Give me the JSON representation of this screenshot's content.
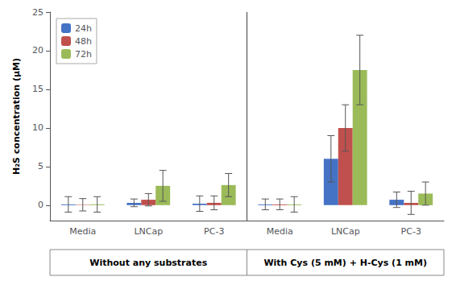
{
  "chart_data": {
    "type": "bar",
    "categories": [
      "Media",
      "LNCap",
      "PC-3",
      "Media",
      "LNCap",
      "PC-3"
    ],
    "series": [
      {
        "name": "24h",
        "color": "#4472C4",
        "values": [
          0.1,
          0.3,
          0.2,
          0.1,
          6.0,
          0.7
        ],
        "errors": [
          1.0,
          0.5,
          1.0,
          0.7,
          3.0,
          1.0
        ]
      },
      {
        "name": "48h",
        "color": "#C0504D",
        "values": [
          0.05,
          0.7,
          0.3,
          0.1,
          10.0,
          0.3
        ],
        "errors": [
          0.8,
          0.8,
          0.9,
          0.7,
          3.0,
          1.5
        ]
      },
      {
        "name": "72h",
        "color": "#9BBB59",
        "values": [
          0.1,
          2.5,
          2.6,
          0.1,
          17.5,
          1.5
        ],
        "errors": [
          1.0,
          2.0,
          1.5,
          1.0,
          4.5,
          1.5
        ]
      }
    ],
    "ylabel": "H₂S concentration (μM)",
    "ylim": [
      -2,
      25
    ],
    "yticks": [
      0,
      5,
      10,
      15,
      20,
      25
    ],
    "grid": false,
    "legend": "upper left",
    "annotations": [
      "Without any substrates",
      "With Cys (5 mM) + H-Cys (1 mM)"
    ]
  }
}
